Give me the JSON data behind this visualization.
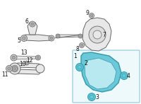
{
  "bg_color": "#ffffff",
  "part_color": "#e8e8e8",
  "part_stroke": "#666666",
  "part_lw": 0.7,
  "highlight_fill": "#6ac8d8",
  "highlight_edge": "#3399aa",
  "highlight_lw": 1.0,
  "box_fill": "#eef9fb",
  "box_edge": "#99ccdd",
  "label_color": "#111111",
  "label_fs": 5.5,
  "bolt_gray_fill": "#cccccc",
  "bolt_gray_edge": "#555555",
  "bolt_blue_fill": "#5bbfcf",
  "bolt_blue_edge": "#2299aa"
}
